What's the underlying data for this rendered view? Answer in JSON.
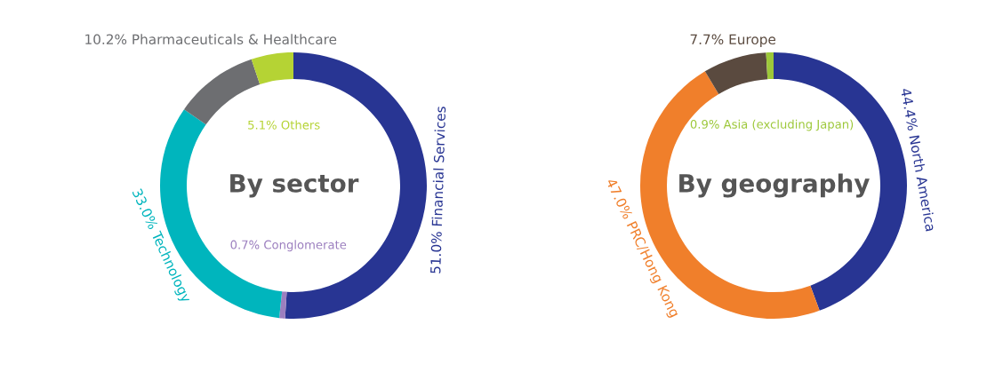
{
  "chart_data": [
    {
      "type": "donut",
      "title": "By sector",
      "categories": [
        "Financial Services",
        "Conglomerate",
        "Technology",
        "Pharmaceuticals & Healthcare",
        "Others"
      ],
      "values": [
        51.0,
        0.7,
        33.0,
        10.2,
        5.1
      ],
      "value_labels": [
        "51.0%",
        "0.7%",
        "33.0%",
        "10.2%",
        "5.1%"
      ],
      "colors": [
        "#283593",
        "#9c7fbf",
        "#00b5bd",
        "#6d6e71",
        "#b5d334"
      ]
    },
    {
      "type": "donut",
      "title": "By geography",
      "categories": [
        "North America",
        "PRC/Hong Kong",
        "Europe",
        "Asia (excluding Japan)"
      ],
      "values": [
        44.4,
        47.0,
        7.7,
        0.9
      ],
      "value_labels": [
        "44.4%",
        "47.0%",
        "7.7%",
        "0.9%"
      ],
      "colors": [
        "#283593",
        "#f07f2b",
        "#5a4a3f",
        "#9dc83a"
      ]
    }
  ]
}
